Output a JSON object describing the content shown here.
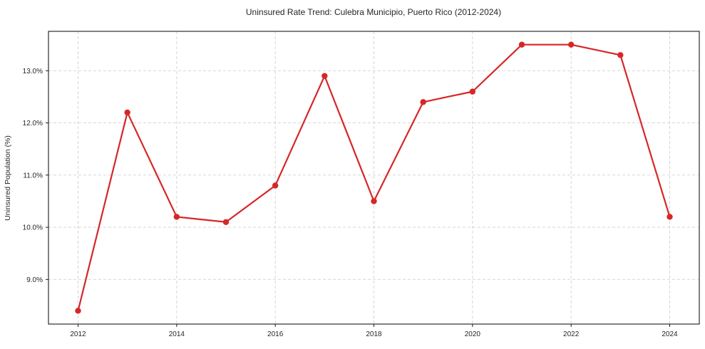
{
  "chart_data": {
    "type": "line",
    "title": "Uninsured Rate Trend: Culebra Municipio, Puerto Rico (2012-2024)",
    "xlabel": "",
    "ylabel": "Uninsured Population (%)",
    "x": [
      2012,
      2013,
      2014,
      2015,
      2016,
      2017,
      2018,
      2019,
      2020,
      2021,
      2022,
      2023,
      2024
    ],
    "values": [
      8.4,
      12.2,
      10.2,
      10.1,
      10.8,
      12.9,
      10.5,
      12.4,
      12.6,
      13.5,
      13.5,
      13.3,
      10.2
    ],
    "x_ticks": [
      2012,
      2014,
      2016,
      2018,
      2020,
      2022,
      2024
    ],
    "x_tick_labels": [
      "2012",
      "2014",
      "2016",
      "2018",
      "2020",
      "2022",
      "2024"
    ],
    "y_ticks": [
      9.0,
      10.0,
      11.0,
      12.0,
      13.0
    ],
    "y_tick_labels": [
      "9.0%",
      "10.0%",
      "11.0%",
      "12.0%",
      "13.0%"
    ],
    "xlim": [
      2011.4,
      2024.6
    ],
    "ylim": [
      8.145,
      13.755
    ],
    "grid": true,
    "legend": "none",
    "line_color": "#d62728",
    "grid_color": "#cccccc",
    "axis_color": "#1a1a1a",
    "tick_label_color": "#262626"
  }
}
